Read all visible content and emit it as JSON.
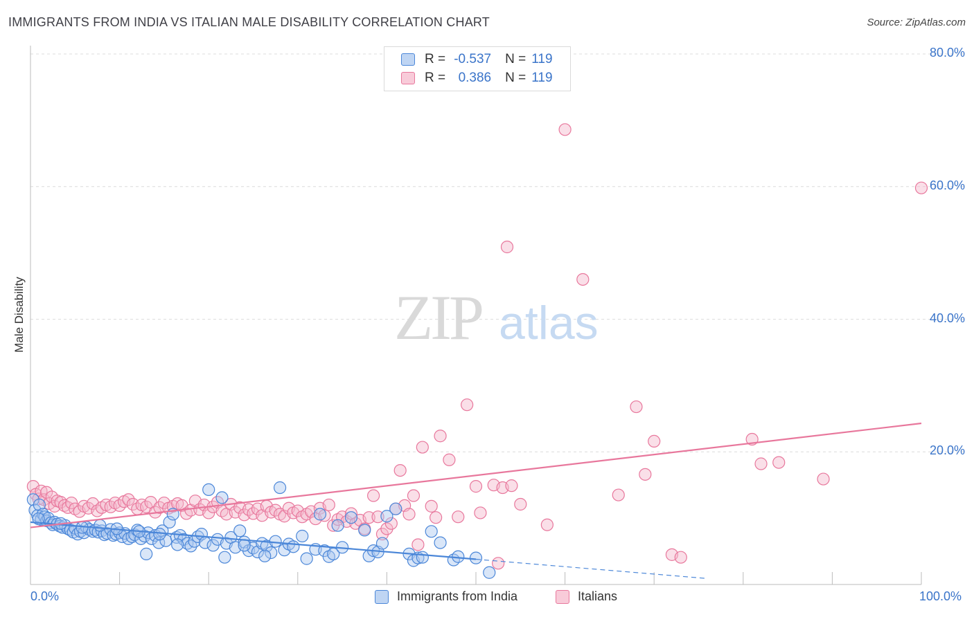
{
  "title": "IMMIGRANTS FROM INDIA VS ITALIAN MALE DISABILITY CORRELATION CHART",
  "source": "Source: ZipAtlas.com",
  "watermark": {
    "zip": "ZIP",
    "atlas": "atlas"
  },
  "legend": {
    "r_label": "R =",
    "n_label": "N =",
    "rows": [
      {
        "r": "-0.537",
        "n": "119"
      },
      {
        "r": "0.386",
        "n": "119"
      }
    ]
  },
  "bottom_legend": [
    "Immigrants from India",
    "Italians"
  ],
  "colors": {
    "blue": "#4a86d8",
    "blue_fill": "#aac8f0",
    "pink": "#e8779c",
    "pink_fill": "#f5b8cb",
    "accent_text": "#3a74c9"
  },
  "chart_data": {
    "type": "scatter",
    "xlabel": "",
    "ylabel": "Male Disability",
    "xlim": [
      0,
      100
    ],
    "ylim": [
      0,
      80
    ],
    "x_tick_labels": [
      "0.0%",
      "100.0%"
    ],
    "y_ticks": [
      20,
      40,
      60,
      80
    ],
    "y_tick_labels": [
      "20.0%",
      "40.0%",
      "60.0%",
      "80.0%"
    ],
    "grid": true,
    "legend_position": "top-center",
    "series": [
      {
        "name": "Immigrants from India",
        "color": "blue",
        "r": -0.537,
        "n": 119,
        "trend": {
          "x_start": 0,
          "y_start": 9.4,
          "x_solid_end": 50,
          "x_end": 76,
          "y_end": 0.9
        },
        "points": [
          [
            0.3,
            12.8
          ],
          [
            0.5,
            11.2
          ],
          [
            0.8,
            10.4
          ],
          [
            1.0,
            12.0
          ],
          [
            1.2,
            9.8
          ],
          [
            1.4,
            10.6
          ],
          [
            1.6,
            10.2
          ],
          [
            1.8,
            9.6
          ],
          [
            2.0,
            10.0
          ],
          [
            2.3,
            9.3
          ],
          [
            2.5,
            9.0
          ],
          [
            2.7,
            9.4
          ],
          [
            3.0,
            9.1
          ],
          [
            3.3,
            8.8
          ],
          [
            3.6,
            8.6
          ],
          [
            3.9,
            8.9
          ],
          [
            4.2,
            8.4
          ],
          [
            4.5,
            8.2
          ],
          [
            4.8,
            7.9
          ],
          [
            5.0,
            8.5
          ],
          [
            5.3,
            7.6
          ],
          [
            5.6,
            8.0
          ],
          [
            6.0,
            7.8
          ],
          [
            6.3,
            8.6
          ],
          [
            6.6,
            8.3
          ],
          [
            7.0,
            8.0
          ],
          [
            7.3,
            8.2
          ],
          [
            7.6,
            7.9
          ],
          [
            8.0,
            8.1
          ],
          [
            8.3,
            7.5
          ],
          [
            8.6,
            7.7
          ],
          [
            9.0,
            8.3
          ],
          [
            9.3,
            7.4
          ],
          [
            9.6,
            7.6
          ],
          [
            10.0,
            7.8
          ],
          [
            10.3,
            7.2
          ],
          [
            10.6,
            7.7
          ],
          [
            11.0,
            6.9
          ],
          [
            11.4,
            7.2
          ],
          [
            11.7,
            7.5
          ],
          [
            12.0,
            8.2
          ],
          [
            12.4,
            6.9
          ],
          [
            12.8,
            7.3
          ],
          [
            13.2,
            7.8
          ],
          [
            13.6,
            6.9
          ],
          [
            14.0,
            7.4
          ],
          [
            14.4,
            6.3
          ],
          [
            14.8,
            8.1
          ],
          [
            15.2,
            6.6
          ],
          [
            15.6,
            9.4
          ],
          [
            16.0,
            10.6
          ],
          [
            16.4,
            7.1
          ],
          [
            16.8,
            7.4
          ],
          [
            17.2,
            6.8
          ],
          [
            17.6,
            6.2
          ],
          [
            18.0,
            5.8
          ],
          [
            18.4,
            6.5
          ],
          [
            18.8,
            7.2
          ],
          [
            19.2,
            7.6
          ],
          [
            19.6,
            6.3
          ],
          [
            20.0,
            14.3
          ],
          [
            20.5,
            5.9
          ],
          [
            21.0,
            6.8
          ],
          [
            21.5,
            13.1
          ],
          [
            22.0,
            6.2
          ],
          [
            22.5,
            7.1
          ],
          [
            23.0,
            5.6
          ],
          [
            23.5,
            8.1
          ],
          [
            24.0,
            6.4
          ],
          [
            24.5,
            5.1
          ],
          [
            25.0,
            5.5
          ],
          [
            25.5,
            4.9
          ],
          [
            26.0,
            6.2
          ],
          [
            26.5,
            5.8
          ],
          [
            27.0,
            4.8
          ],
          [
            27.5,
            6.5
          ],
          [
            28.0,
            14.6
          ],
          [
            28.5,
            5.2
          ],
          [
            29.0,
            6.1
          ],
          [
            29.5,
            5.7
          ],
          [
            30.5,
            7.3
          ],
          [
            31.0,
            3.9
          ],
          [
            32.0,
            5.3
          ],
          [
            32.5,
            10.6
          ],
          [
            33.0,
            5.1
          ],
          [
            33.5,
            4.2
          ],
          [
            34.0,
            4.6
          ],
          [
            35.0,
            5.6
          ],
          [
            36.0,
            10.1
          ],
          [
            37.5,
            8.2
          ],
          [
            38.0,
            4.3
          ],
          [
            38.5,
            5.1
          ],
          [
            39.0,
            4.9
          ],
          [
            39.5,
            6.2
          ],
          [
            40.0,
            10.3
          ],
          [
            41.0,
            11.4
          ],
          [
            42.5,
            4.6
          ],
          [
            43.0,
            3.6
          ],
          [
            43.5,
            4.0
          ],
          [
            44.0,
            4.1
          ],
          [
            45.0,
            8.0
          ],
          [
            46.0,
            6.3
          ],
          [
            47.5,
            3.7
          ],
          [
            48.0,
            4.2
          ],
          [
            50.0,
            4.0
          ],
          [
            51.5,
            1.8
          ],
          [
            13.0,
            4.6
          ],
          [
            16.5,
            6.0
          ],
          [
            21.8,
            4.1
          ],
          [
            24.0,
            5.9
          ],
          [
            26.3,
            4.3
          ],
          [
            34.5,
            8.9
          ],
          [
            0.9,
            9.9
          ],
          [
            3.4,
            9.2
          ],
          [
            5.8,
            8.6
          ],
          [
            7.8,
            8.9
          ],
          [
            9.7,
            8.4
          ],
          [
            12.2,
            8.0
          ],
          [
            14.5,
            7.6
          ]
        ]
      },
      {
        "name": "Italians",
        "color": "pink",
        "r": 0.386,
        "n": 119,
        "trend": {
          "x_start": 0,
          "y_start": 8.6,
          "x_end": 100,
          "y_end": 24.3
        },
        "points": [
          [
            0.3,
            14.8
          ],
          [
            0.6,
            13.6
          ],
          [
            0.9,
            12.9
          ],
          [
            1.2,
            14.1
          ],
          [
            1.5,
            12.8
          ],
          [
            1.8,
            13.9
          ],
          [
            2.1,
            12.2
          ],
          [
            2.4,
            13.2
          ],
          [
            2.7,
            11.8
          ],
          [
            3.0,
            12.6
          ],
          [
            3.4,
            12.4
          ],
          [
            3.8,
            11.9
          ],
          [
            4.2,
            11.6
          ],
          [
            4.6,
            12.3
          ],
          [
            5.0,
            11.4
          ],
          [
            5.5,
            11.0
          ],
          [
            6.0,
            11.8
          ],
          [
            6.5,
            11.5
          ],
          [
            7.0,
            12.2
          ],
          [
            7.5,
            11.1
          ],
          [
            8.0,
            11.6
          ],
          [
            8.5,
            12.0
          ],
          [
            9.0,
            11.7
          ],
          [
            9.5,
            12.3
          ],
          [
            10.0,
            11.9
          ],
          [
            10.5,
            12.5
          ],
          [
            11.0,
            12.8
          ],
          [
            11.5,
            12.1
          ],
          [
            12.0,
            11.4
          ],
          [
            12.5,
            12.0
          ],
          [
            13.0,
            11.7
          ],
          [
            13.5,
            12.4
          ],
          [
            14.0,
            10.9
          ],
          [
            14.5,
            11.6
          ],
          [
            15.0,
            12.3
          ],
          [
            15.5,
            11.5
          ],
          [
            16.0,
            11.8
          ],
          [
            16.5,
            12.2
          ],
          [
            17.0,
            11.9
          ],
          [
            17.5,
            10.7
          ],
          [
            18.0,
            11.2
          ],
          [
            18.5,
            12.6
          ],
          [
            19.0,
            11.3
          ],
          [
            19.5,
            12.0
          ],
          [
            20.0,
            10.8
          ],
          [
            20.5,
            11.7
          ],
          [
            21.0,
            12.4
          ],
          [
            21.5,
            11.1
          ],
          [
            22.0,
            10.6
          ],
          [
            22.5,
            12.1
          ],
          [
            23.0,
            10.9
          ],
          [
            23.5,
            11.6
          ],
          [
            24.0,
            10.5
          ],
          [
            24.5,
            11.3
          ],
          [
            25.0,
            10.7
          ],
          [
            25.5,
            11.4
          ],
          [
            26.0,
            10.4
          ],
          [
            26.5,
            11.8
          ],
          [
            27.0,
            10.9
          ],
          [
            27.5,
            11.2
          ],
          [
            28.0,
            10.6
          ],
          [
            28.5,
            10.3
          ],
          [
            29.0,
            11.5
          ],
          [
            29.5,
            10.8
          ],
          [
            30.0,
            11.1
          ],
          [
            30.5,
            10.2
          ],
          [
            31.0,
            10.6
          ],
          [
            31.5,
            11.0
          ],
          [
            32.0,
            9.9
          ],
          [
            32.5,
            11.5
          ],
          [
            33.0,
            10.4
          ],
          [
            33.5,
            12.0
          ],
          [
            34.0,
            8.9
          ],
          [
            34.5,
            9.8
          ],
          [
            35.0,
            10.2
          ],
          [
            35.5,
            9.5
          ],
          [
            36.0,
            10.7
          ],
          [
            36.5,
            9.2
          ],
          [
            37.0,
            9.7
          ],
          [
            37.5,
            8.4
          ],
          [
            38.0,
            10.1
          ],
          [
            38.5,
            13.4
          ],
          [
            39.0,
            10.2
          ],
          [
            39.5,
            7.6
          ],
          [
            40.0,
            8.4
          ],
          [
            40.5,
            9.2
          ],
          [
            41.0,
            11.4
          ],
          [
            41.5,
            17.2
          ],
          [
            42.0,
            11.9
          ],
          [
            42.5,
            10.6
          ],
          [
            43.0,
            13.4
          ],
          [
            44.0,
            20.7
          ],
          [
            45.0,
            11.8
          ],
          [
            45.5,
            10.1
          ],
          [
            46.0,
            22.4
          ],
          [
            47.0,
            18.8
          ],
          [
            48.0,
            10.2
          ],
          [
            49.0,
            27.1
          ],
          [
            50.0,
            14.8
          ],
          [
            50.5,
            10.8
          ],
          [
            52.0,
            15.0
          ],
          [
            53.0,
            14.6
          ],
          [
            53.5,
            50.9
          ],
          [
            54.0,
            14.9
          ],
          [
            55.0,
            12.1
          ],
          [
            58.0,
            9.0
          ],
          [
            60.0,
            68.6
          ],
          [
            62.0,
            46.0
          ],
          [
            66.0,
            13.5
          ],
          [
            68.0,
            26.8
          ],
          [
            69.0,
            16.6
          ],
          [
            70.0,
            21.6
          ],
          [
            72.0,
            4.5
          ],
          [
            73.0,
            4.1
          ],
          [
            81.0,
            21.9
          ],
          [
            82.0,
            18.2
          ],
          [
            84.0,
            18.4
          ],
          [
            89.0,
            15.9
          ],
          [
            100.0,
            59.8
          ],
          [
            52.5,
            3.2
          ],
          [
            43.5,
            6.0
          ]
        ]
      }
    ]
  }
}
